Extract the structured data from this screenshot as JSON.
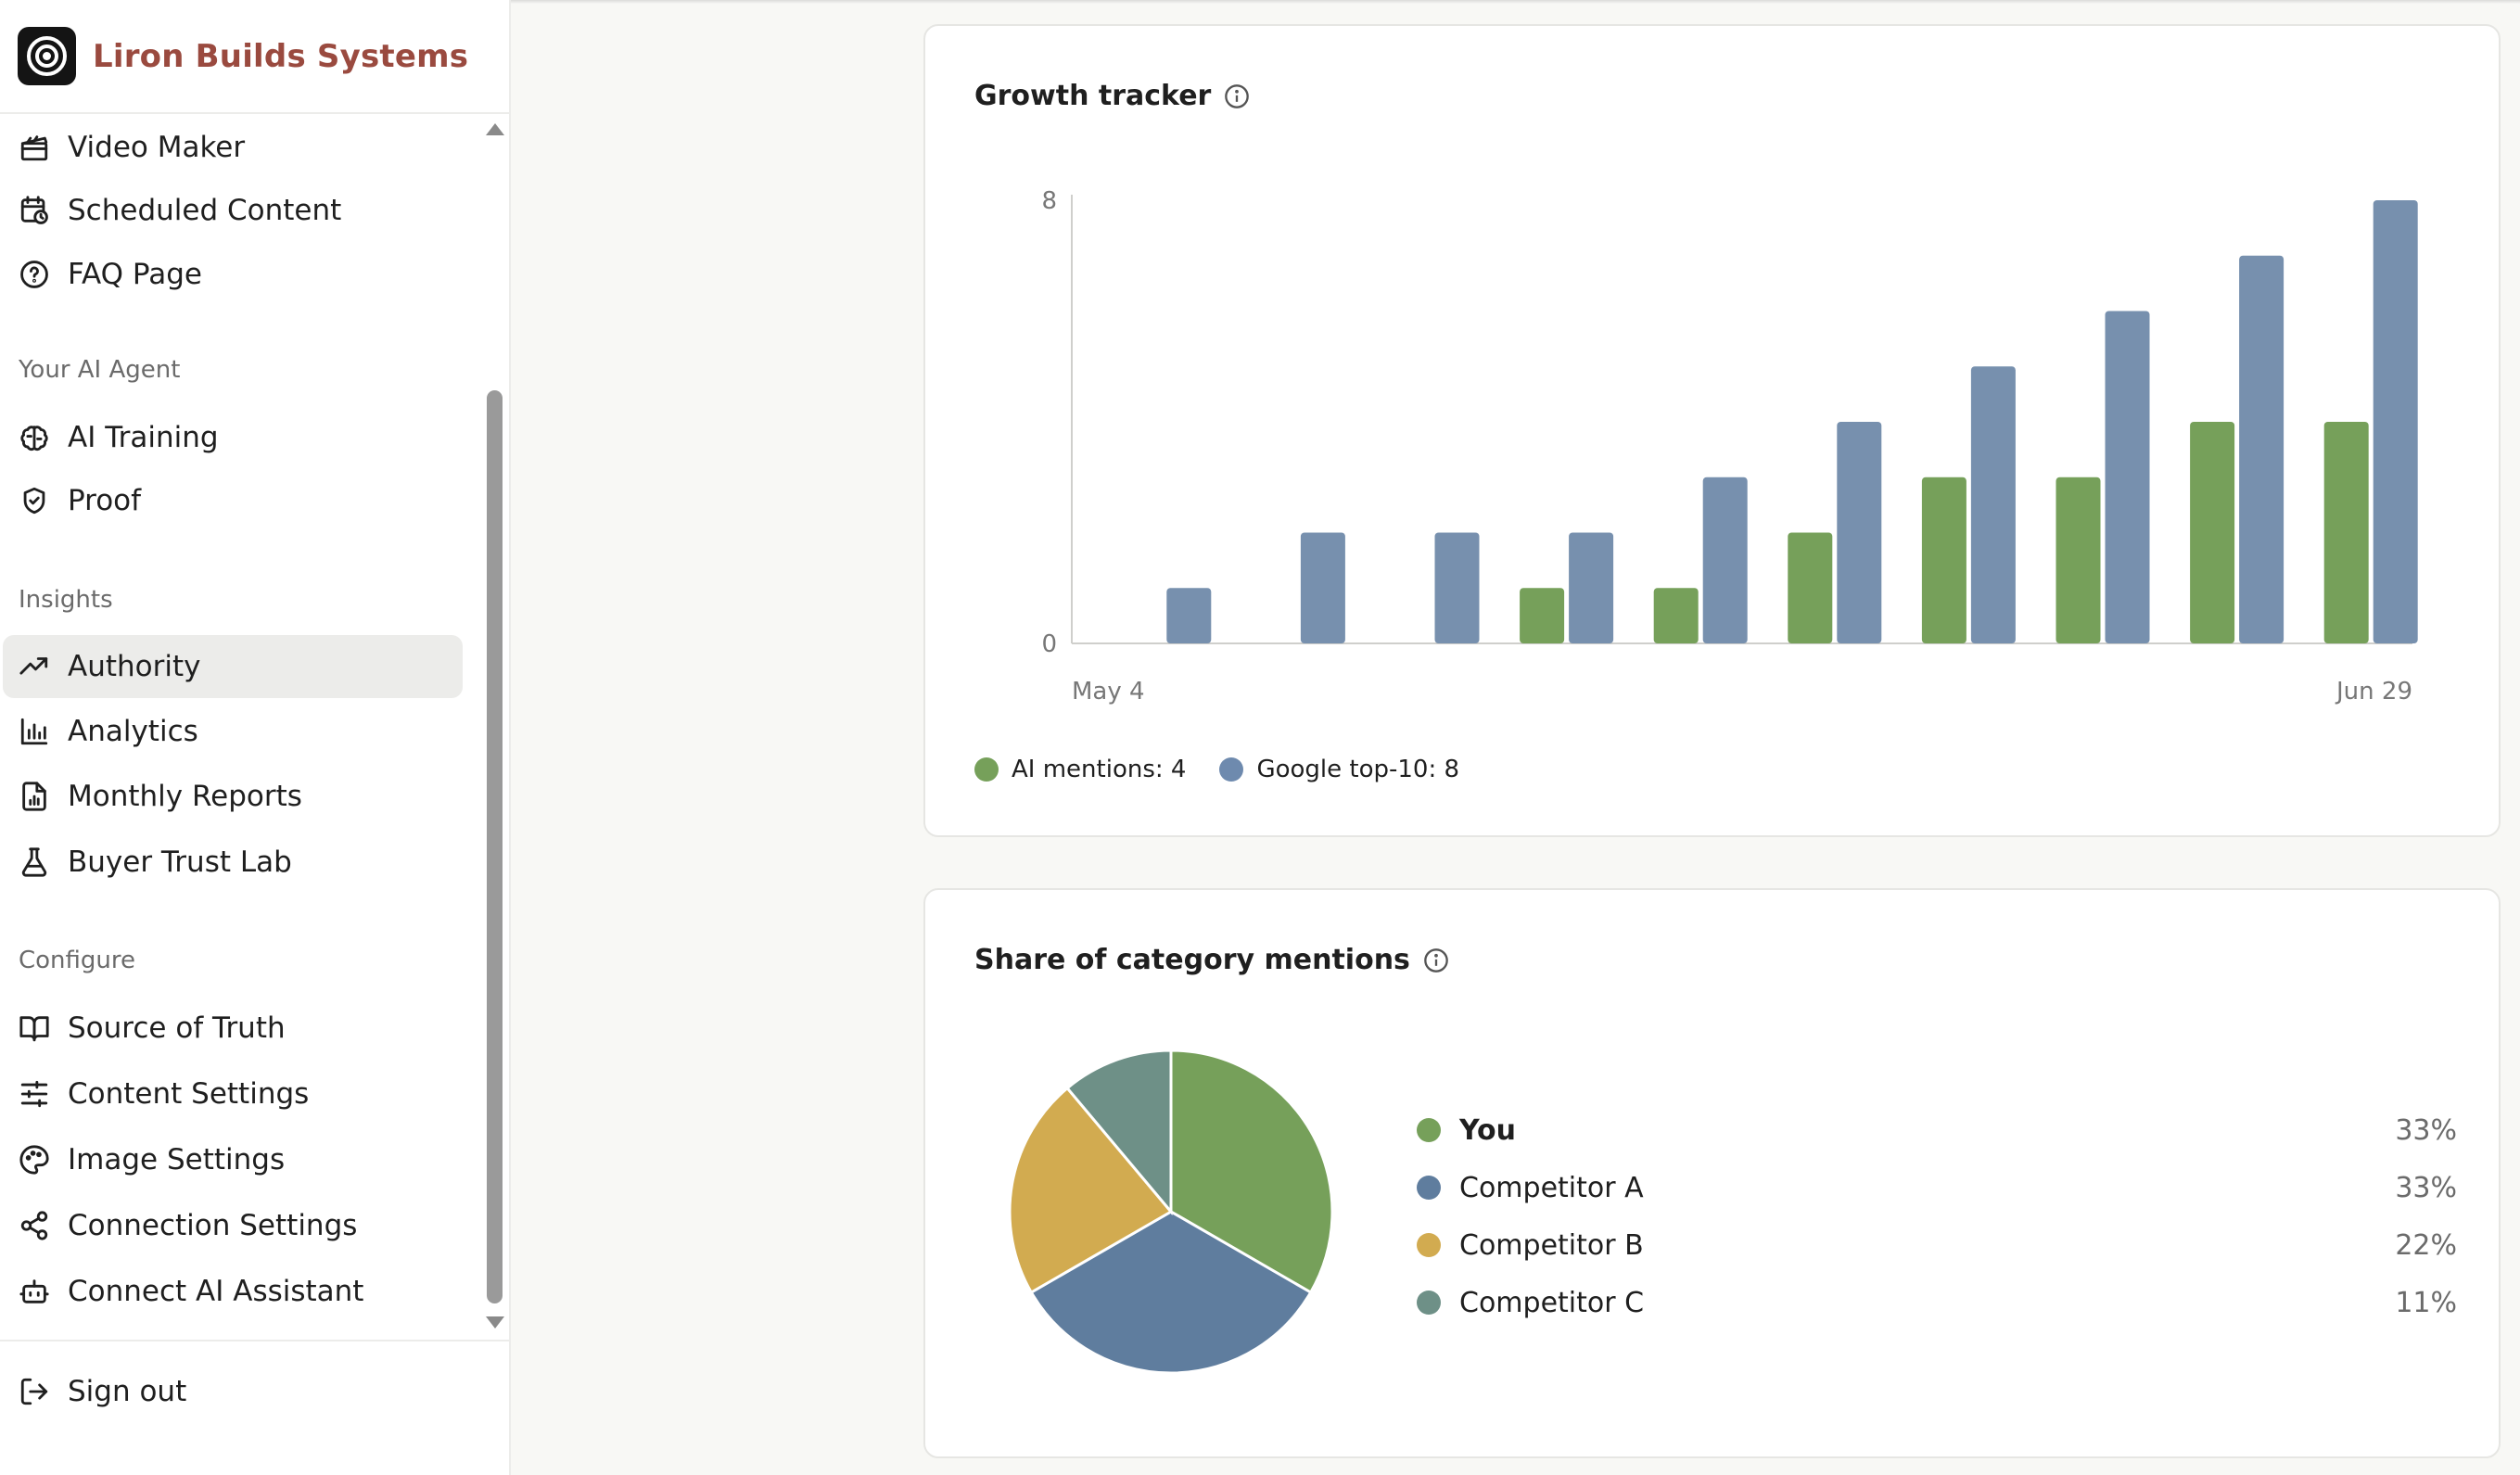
{
  "brand": {
    "name": "Liron Builds Systems"
  },
  "sidebar": {
    "items_top": [
      {
        "label": "Video Maker",
        "icon": "clapperboard-icon"
      },
      {
        "label": "Scheduled Content",
        "icon": "calendar-clock-icon"
      },
      {
        "label": "FAQ Page",
        "icon": "help-circle-icon"
      }
    ],
    "section_agent": "Your AI Agent",
    "items_agent": [
      {
        "label": "AI Training",
        "icon": "brain-icon"
      },
      {
        "label": "Proof",
        "icon": "shield-check-icon"
      }
    ],
    "section_insights": "Insights",
    "items_insights": [
      {
        "label": "Authority",
        "icon": "trending-up-icon",
        "active": true
      },
      {
        "label": "Analytics",
        "icon": "bar-chart-icon"
      },
      {
        "label": "Monthly Reports",
        "icon": "file-chart-icon"
      },
      {
        "label": "Buyer Trust Lab",
        "icon": "flask-icon"
      }
    ],
    "section_configure": "Configure",
    "items_configure": [
      {
        "label": "Source of Truth",
        "icon": "book-open-icon"
      },
      {
        "label": "Content Settings",
        "icon": "sliders-icon"
      },
      {
        "label": "Image Settings",
        "icon": "palette-icon"
      },
      {
        "label": "Connection Settings",
        "icon": "share-nodes-icon"
      },
      {
        "label": "Connect AI Assistant",
        "icon": "bot-icon"
      }
    ],
    "signout": "Sign out"
  },
  "growth": {
    "title": "Growth tracker",
    "legend_ai": "AI mentions: 4",
    "legend_google": "Google top-10: 8"
  },
  "share": {
    "title": "Share of category mentions",
    "rows": [
      {
        "name": "You",
        "pct": "33%"
      },
      {
        "name": "Competitor A",
        "pct": "33%"
      },
      {
        "name": "Competitor B",
        "pct": "22%"
      },
      {
        "name": "Competitor C",
        "pct": "11%"
      }
    ]
  },
  "chart_data": [
    {
      "type": "bar",
      "title": "Growth tracker",
      "xlabel": "",
      "ylabel": "",
      "ylim": [
        0,
        8
      ],
      "y_ticks": [
        "0",
        "8"
      ],
      "x_tick_labels": [
        "May 4",
        "Jun 29"
      ],
      "categories": [
        "May 4",
        "",
        "",
        "",
        "",
        "",
        "",
        "",
        "",
        "Jun 29"
      ],
      "series": [
        {
          "name": "AI mentions",
          "color": "#76a05a",
          "values": [
            0,
            0,
            0,
            1,
            1,
            2,
            3,
            3,
            4,
            4
          ]
        },
        {
          "name": "Google top-10",
          "color": "#7790ae",
          "values": [
            1,
            2,
            2,
            2,
            3,
            4,
            5,
            6,
            7,
            8
          ]
        }
      ],
      "grid": false,
      "legend": "bottom-left"
    },
    {
      "type": "pie",
      "title": "Share of category mentions",
      "categories": [
        "You",
        "Competitor A",
        "Competitor B",
        "Competitor C"
      ],
      "values": [
        33,
        33,
        22,
        11
      ],
      "colors": [
        "#76a05a",
        "#5f7d9e",
        "#d2ab50",
        "#6e9087"
      ],
      "legend": "right"
    }
  ],
  "colors": {
    "brand": "#9a4a3f",
    "ai_mentions": "#76a05a",
    "google_top10": "#7790ae",
    "active_nav_bg": "#ececea"
  }
}
